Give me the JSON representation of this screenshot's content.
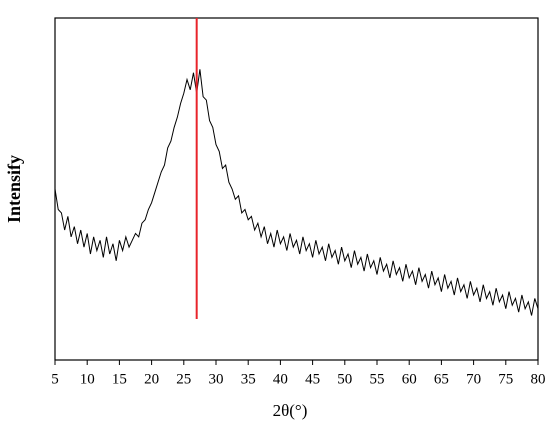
{
  "chart_data": {
    "type": "line",
    "xlabel": "2θ(°)",
    "ylabel": "Intensify",
    "xlim": [
      5,
      80
    ],
    "xticks": [
      5,
      10,
      15,
      20,
      25,
      30,
      35,
      40,
      45,
      50,
      55,
      60,
      65,
      70,
      75,
      80
    ],
    "ylim": [
      0,
      100
    ],
    "series": [
      {
        "color": "#000000",
        "x": [
          5,
          5.5,
          6,
          6.5,
          7,
          7.5,
          8,
          8.5,
          9,
          9.5,
          10,
          10.5,
          11,
          11.5,
          12,
          12.5,
          13,
          13.5,
          14,
          14.5,
          15,
          15.5,
          16,
          16.5,
          17,
          17.5,
          18,
          18.5,
          19,
          19.5,
          20,
          20.5,
          21,
          21.5,
          22,
          22.5,
          23,
          23.5,
          24,
          24.5,
          25,
          25.5,
          26,
          26.5,
          27,
          27.5,
          28,
          28.5,
          29,
          29.5,
          30,
          30.5,
          31,
          31.5,
          32,
          32.5,
          33,
          33.5,
          34,
          34.5,
          35,
          35.5,
          36,
          36.5,
          37,
          37.5,
          38,
          38.5,
          39,
          39.5,
          40,
          40.5,
          41,
          41.5,
          42,
          42.5,
          43,
          43.5,
          44,
          44.5,
          45,
          45.5,
          46,
          46.5,
          47,
          47.5,
          48,
          48.5,
          49,
          49.5,
          50,
          50.5,
          51,
          51.5,
          52,
          52.5,
          53,
          53.5,
          54,
          54.5,
          55,
          55.5,
          56,
          56.5,
          57,
          57.5,
          58,
          58.5,
          59,
          59.5,
          60,
          60.5,
          61,
          61.5,
          62,
          62.5,
          63,
          63.5,
          64,
          64.5,
          65,
          65.5,
          66,
          66.5,
          67,
          67.5,
          68,
          68.5,
          69,
          69.5,
          70,
          70.5,
          71,
          71.5,
          72,
          72.5,
          73,
          73.5,
          74,
          74.5,
          75,
          75.5,
          76,
          76.5,
          77,
          77.5,
          78,
          78.5,
          79,
          79.5,
          80
        ],
        "values": [
          50,
          44,
          43,
          38,
          42,
          36,
          39,
          34,
          38,
          33,
          37,
          31,
          36,
          32,
          35,
          30,
          36,
          31,
          34,
          29,
          35,
          32,
          36,
          33,
          35,
          37,
          36,
          40,
          41,
          44,
          46,
          49,
          52,
          55,
          57,
          62,
          64,
          68,
          71,
          75,
          78,
          82,
          79,
          84,
          78,
          85,
          77,
          76,
          70,
          68,
          63,
          61,
          56,
          57,
          52,
          50,
          47,
          48,
          43,
          44,
          41,
          42,
          38,
          40,
          36,
          39,
          34,
          37,
          33,
          38,
          34,
          36,
          32,
          37,
          33,
          35,
          31,
          36,
          32,
          34,
          30,
          35,
          31,
          33,
          29,
          34,
          30,
          32,
          28,
          33,
          29,
          31,
          27,
          32,
          28,
          30,
          26,
          31,
          27,
          29,
          25,
          30,
          26,
          28,
          24,
          29,
          25,
          27,
          23,
          28,
          24,
          26,
          22,
          27,
          23,
          25,
          21,
          26,
          22,
          24,
          20,
          25,
          21,
          23,
          19,
          24,
          20,
          22,
          18,
          23,
          19,
          21,
          17,
          22,
          18,
          20,
          16,
          21,
          17,
          19,
          15,
          20,
          16,
          18,
          14,
          19,
          15,
          17,
          13,
          18,
          15
        ]
      }
    ],
    "reference_line": {
      "x": 27,
      "y": [
        12,
        100
      ],
      "color": "#e8242b"
    }
  }
}
